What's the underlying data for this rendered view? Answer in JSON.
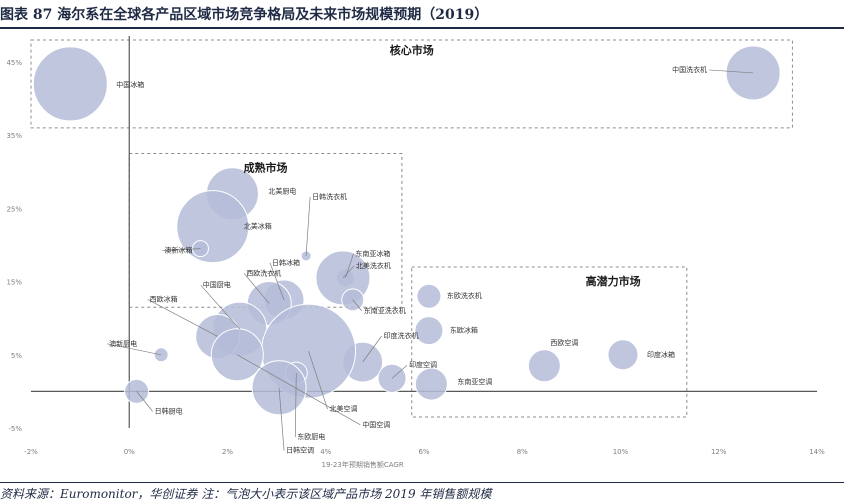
{
  "figure": {
    "title": "图表 87   海尔系在全球各产品区域市场竞争格局及未来市场规模预期（2019）",
    "source": "资料来源：Euromonitor，华创证券   注：气泡大小表示该区域产品市场 2019 年销售额规模"
  },
  "chart_data": {
    "type": "scatter",
    "bubble": true,
    "xlabel": "19-23年预期销售额CAGR",
    "xlim": [
      -0.02,
      0.14
    ],
    "ylim": [
      -0.05,
      0.48
    ],
    "x_ticks": [
      "-2%",
      "0%",
      "2%",
      "4%",
      "6%",
      "8%",
      "10%",
      "12%",
      "14%"
    ],
    "x_tick_values": [
      -0.02,
      0,
      0.02,
      0.04,
      0.06,
      0.08,
      0.1,
      0.12,
      0.14
    ],
    "y_ticks": [
      "-5%",
      "5%",
      "15%",
      "25%",
      "35%",
      "45%"
    ],
    "y_tick_values": [
      -0.05,
      0.05,
      0.15,
      0.25,
      0.35,
      0.45
    ],
    "bubble_color": "#b4bcd8",
    "regions": [
      {
        "label": "核心市场",
        "x": [
          -0.02,
          0.135
        ],
        "y": [
          0.36,
          0.48
        ]
      },
      {
        "label": "成熟市场",
        "x": [
          0.0,
          0.0555
        ],
        "y": [
          0.115,
          0.325
        ]
      },
      {
        "label": "高潜力市场",
        "x": [
          0.0575,
          0.1135
        ],
        "y": [
          -0.035,
          0.17
        ]
      }
    ],
    "points": [
      {
        "label": "中国冰箱",
        "x": -0.012,
        "y": 0.42,
        "size": 37
      },
      {
        "label": "中国洗衣机",
        "x": 0.127,
        "y": 0.435,
        "size": 27
      },
      {
        "label": "北美厨电",
        "x": 0.021,
        "y": 0.27,
        "size": 26
      },
      {
        "label": "北美冰箱",
        "x": 0.017,
        "y": 0.225,
        "size": 36
      },
      {
        "label": "澳新冰箱",
        "x": 0.0145,
        "y": 0.195,
        "size": 8
      },
      {
        "label": "日韩洗衣机",
        "x": 0.036,
        "y": 0.185,
        "size": 5
      },
      {
        "label": "日韩冰箱",
        "x": 0.0315,
        "y": 0.125,
        "size": 20
      },
      {
        "label": "西欧洗衣机",
        "x": 0.0285,
        "y": 0.12,
        "size": 22
      },
      {
        "label": "东南亚冰箱",
        "x": 0.044,
        "y": 0.155,
        "size": 9
      },
      {
        "label": "北美洗衣机",
        "x": 0.0435,
        "y": 0.155,
        "size": 27
      },
      {
        "label": "东南亚洗衣机",
        "x": 0.0455,
        "y": 0.125,
        "size": 11
      },
      {
        "label": "中国厨电",
        "x": 0.0225,
        "y": 0.085,
        "size": 27
      },
      {
        "label": "西欧冰箱",
        "x": 0.018,
        "y": 0.075,
        "size": 22
      },
      {
        "label": "澳新厨电",
        "x": 0.0065,
        "y": 0.05,
        "size": 7
      },
      {
        "label": "印度洗衣机",
        "x": 0.0475,
        "y": 0.04,
        "size": 20
      },
      {
        "label": "印度空调",
        "x": 0.0535,
        "y": 0.018,
        "size": 14
      },
      {
        "label": "北美空调",
        "x": 0.0365,
        "y": 0.055,
        "size": 47
      },
      {
        "label": "中国空调",
        "x": 0.022,
        "y": 0.05,
        "size": 26
      },
      {
        "label": "东欧厨电",
        "x": 0.034,
        "y": 0.025,
        "size": 11
      },
      {
        "label": "日韩空调",
        "x": 0.0305,
        "y": 0.005,
        "size": 27
      },
      {
        "label": "日韩厨电",
        "x": 0.0015,
        "y": 0.0,
        "size": 12
      },
      {
        "label": "东欧洗衣机",
        "x": 0.061,
        "y": 0.13,
        "size": 12
      },
      {
        "label": "东欧冰箱",
        "x": 0.061,
        "y": 0.083,
        "size": 14
      },
      {
        "label": "东南亚空调",
        "x": 0.0615,
        "y": 0.01,
        "size": 16
      },
      {
        "label": "西欧空调",
        "x": 0.0845,
        "y": 0.035,
        "size": 16
      },
      {
        "label": "印度冰箱",
        "x": 0.1005,
        "y": 0.05,
        "size": 15
      }
    ]
  }
}
